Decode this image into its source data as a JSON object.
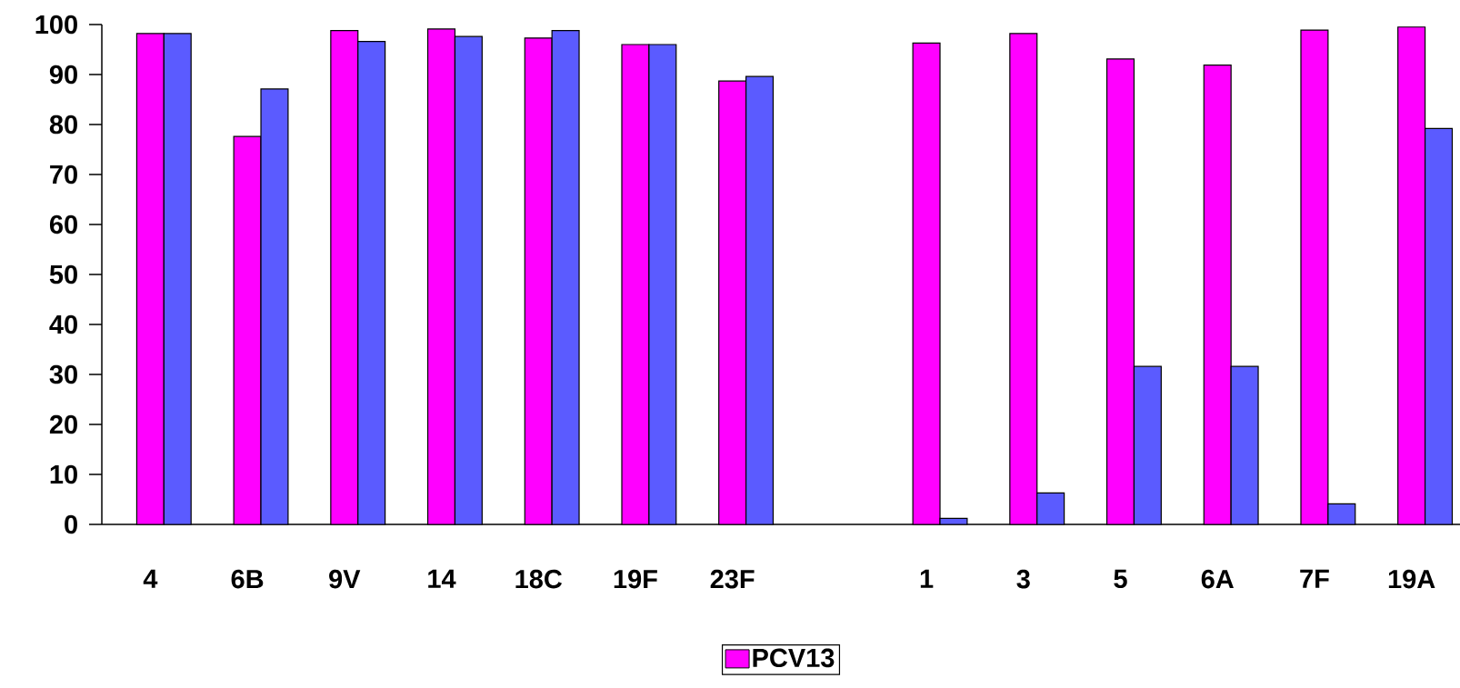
{
  "chart_data": {
    "type": "bar",
    "categories": [
      "4",
      "6B",
      "9V",
      "14",
      "18C",
      "19F",
      "23F",
      null,
      "1",
      "3",
      "5",
      "6A",
      "7F",
      "19A"
    ],
    "series": [
      {
        "name": "PCV13",
        "color": "#ff00ff",
        "values": [
          98.2,
          77.6,
          98.8,
          99.1,
          97.3,
          96.0,
          88.7,
          null,
          96.3,
          98.2,
          93.1,
          91.9,
          98.9,
          99.5
        ]
      },
      {
        "color": "#5b5bff",
        "values": [
          98.2,
          87.1,
          96.6,
          97.6,
          98.8,
          96.0,
          89.6,
          null,
          1.2,
          6.3,
          31.6,
          31.6,
          4.1,
          79.2
        ]
      }
    ],
    "ylim": [
      0,
      100
    ],
    "yticks": [
      0,
      10,
      20,
      30,
      40,
      50,
      60,
      70,
      80,
      90,
      100
    ],
    "grid": false,
    "legend": "bottom"
  }
}
